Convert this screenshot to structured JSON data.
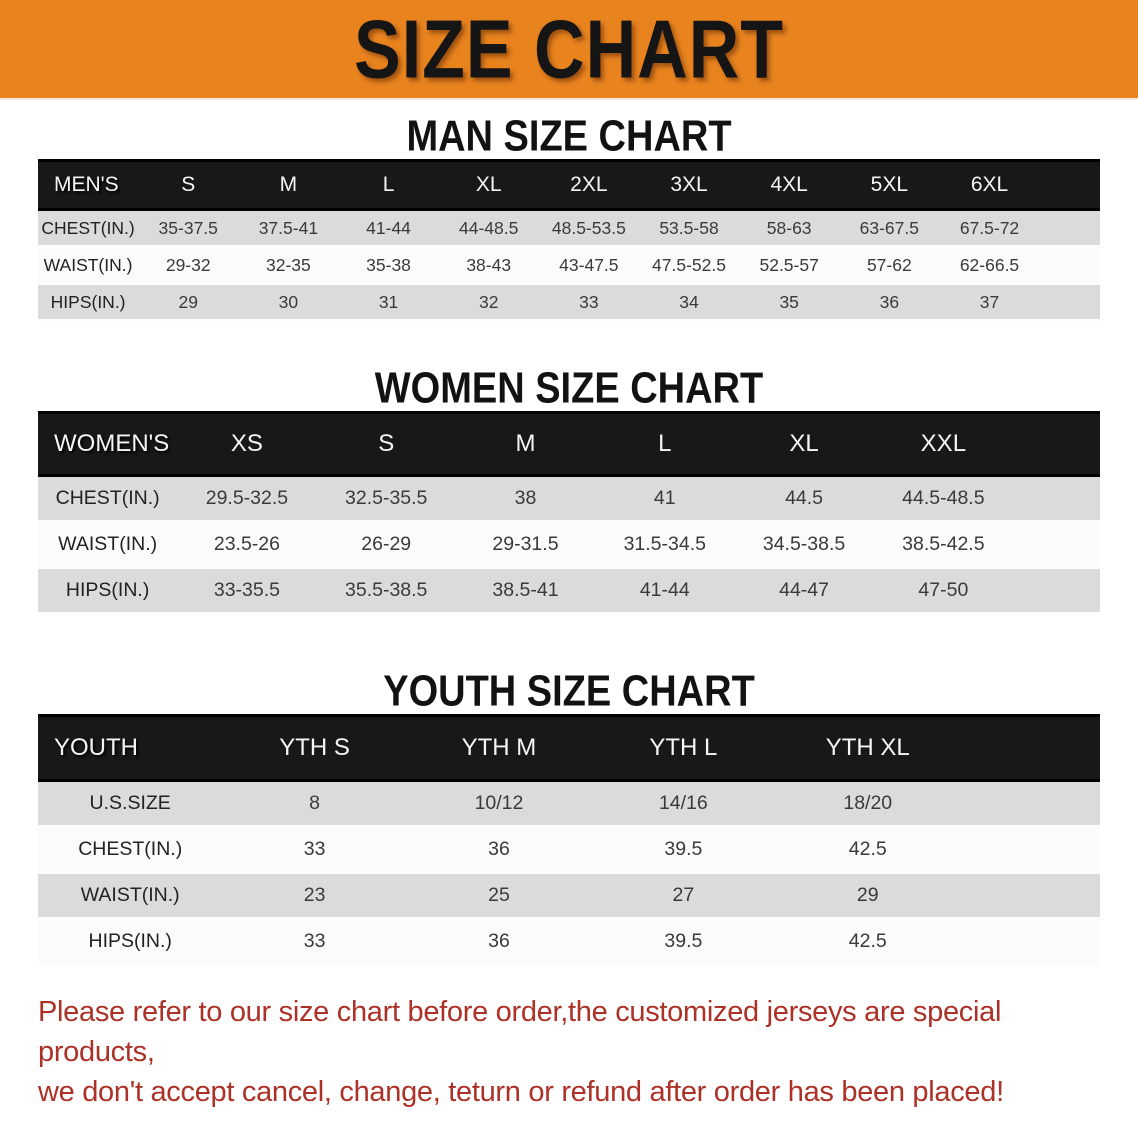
{
  "banner": {
    "title": "SIZE CHART"
  },
  "colors": {
    "banner_bg": "#E8831E",
    "header_bar": "#181818",
    "stripe_row": "#dbdbdb",
    "note_red": "#AC3127"
  },
  "sections": [
    {
      "title": "MAN SIZE CHART",
      "table": {
        "label": "MEN'S",
        "columns": [
          "S",
          "M",
          "L",
          "XL",
          "2XL",
          "3XL",
          "4XL",
          "5XL",
          "6XL"
        ],
        "rows": [
          {
            "label": "CHEST(IN.)",
            "values": [
              "35-37.5",
              "37.5-41",
              "41-44",
              "44-48.5",
              "48.5-53.5",
              "53.5-58",
              "58-63",
              "63-67.5",
              "67.5-72"
            ]
          },
          {
            "label": "WAIST(IN.)",
            "values": [
              "29-32",
              "32-35",
              "35-38",
              "38-43",
              "43-47.5",
              "47.5-52.5",
              "52.5-57",
              "57-62",
              "62-66.5"
            ]
          },
          {
            "label": "HIPS(IN.)",
            "values": [
              "29",
              "30",
              "31",
              "32",
              "33",
              "34",
              "35",
              "36",
              "37"
            ]
          }
        ]
      }
    },
    {
      "title": "WOMEN SIZE CHART",
      "table": {
        "label": "WOMEN'S",
        "columns": [
          "XS",
          "S",
          "M",
          "L",
          "XL",
          "XXL"
        ],
        "rows": [
          {
            "label": "CHEST(IN.)",
            "values": [
              "29.5-32.5",
              "32.5-35.5",
              "38",
              "41",
              "44.5",
              "44.5-48.5"
            ]
          },
          {
            "label": "WAIST(IN.)",
            "values": [
              "23.5-26",
              "26-29",
              "29-31.5",
              "31.5-34.5",
              "34.5-38.5",
              "38.5-42.5"
            ]
          },
          {
            "label": "HIPS(IN.)",
            "values": [
              "33-35.5",
              "35.5-38.5",
              "38.5-41",
              "41-44",
              "44-47",
              "47-50"
            ]
          }
        ]
      }
    },
    {
      "title": "YOUTH SIZE CHART",
      "table": {
        "label": "YOUTH",
        "columns": [
          "YTH S",
          "YTH M",
          "YTH L",
          "YTH XL"
        ],
        "rows": [
          {
            "label": "U.S.SIZE",
            "values": [
              "8",
              "10/12",
              "14/16",
              "18/20"
            ]
          },
          {
            "label": "CHEST(IN.)",
            "values": [
              "33",
              "36",
              "39.5",
              "42.5"
            ]
          },
          {
            "label": "WAIST(IN.)",
            "values": [
              "23",
              "25",
              "27",
              "29"
            ]
          },
          {
            "label": "HIPS(IN.)",
            "values": [
              "33",
              "36",
              "39.5",
              "42.5"
            ]
          }
        ]
      }
    }
  ],
  "note": {
    "line1": "Please refer to our size chart before order,the customized jerseys are special products,",
    "line2": "we don't accept cancel, change, teturn or refund after order has been placed!"
  }
}
